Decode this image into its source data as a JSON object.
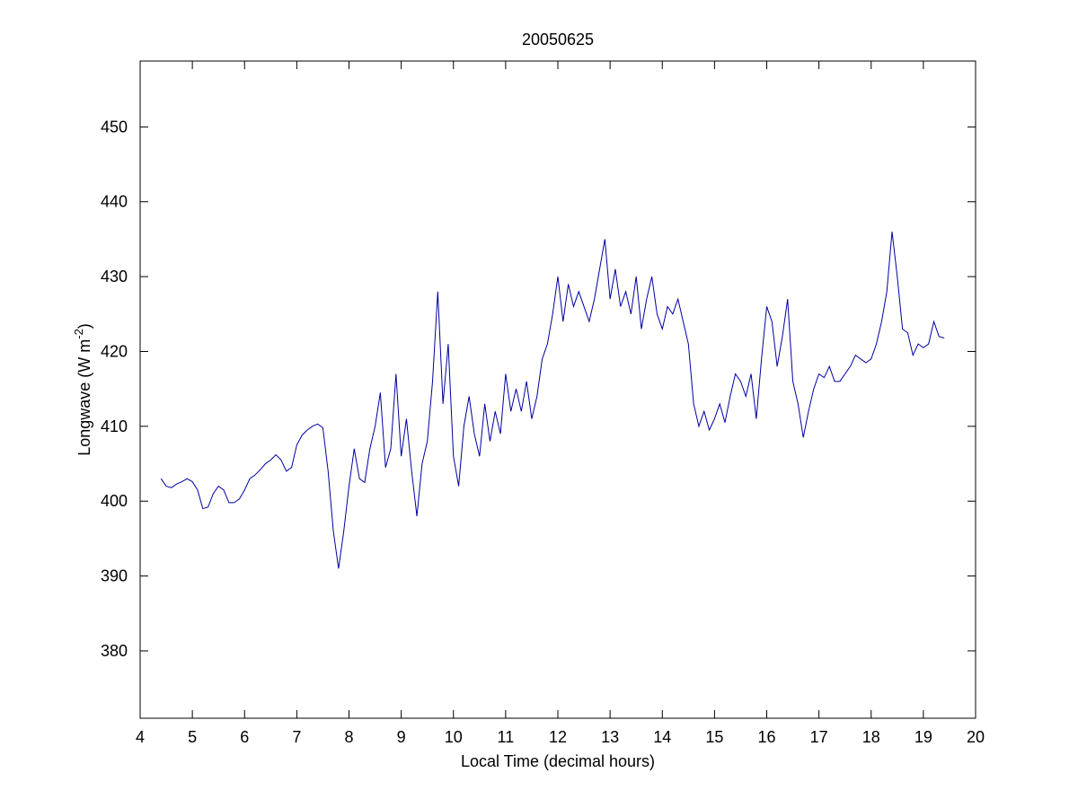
{
  "chart_data": {
    "type": "line",
    "title": "20050625",
    "x_label": "Local Time (decimal hours)",
    "y_label": {
      "text": "Longwave (W m",
      "superscript": "-2",
      "suffix": ")"
    },
    "xlim": [
      4,
      20
    ],
    "ylim": [
      371,
      458.8
    ],
    "xticks": [
      4,
      5,
      6,
      7,
      8,
      9,
      10,
      11,
      12,
      13,
      14,
      15,
      16,
      17,
      18,
      19,
      20
    ],
    "yticks": [
      380,
      390,
      400,
      410,
      420,
      430,
      440,
      450
    ],
    "grid": false,
    "x": [
      4.4,
      4.5,
      4.6,
      4.7,
      4.8,
      4.9,
      5.0,
      5.1,
      5.2,
      5.3,
      5.4,
      5.5,
      5.6,
      5.7,
      5.8,
      5.9,
      6.0,
      6.1,
      6.2,
      6.3,
      6.4,
      6.5,
      6.6,
      6.7,
      6.8,
      6.9,
      7.0,
      7.1,
      7.2,
      7.3,
      7.4,
      7.5,
      7.6,
      7.7,
      7.8,
      7.9,
      8.0,
      8.1,
      8.2,
      8.3,
      8.4,
      8.5,
      8.6,
      8.7,
      8.8,
      8.9,
      9.0,
      9.1,
      9.2,
      9.3,
      9.4,
      9.5,
      9.6,
      9.7,
      9.8,
      9.9,
      10.0,
      10.1,
      10.2,
      10.3,
      10.4,
      10.5,
      10.6,
      10.7,
      10.8,
      10.9,
      11.0,
      11.1,
      11.2,
      11.3,
      11.4,
      11.5,
      11.6,
      11.7,
      11.8,
      11.9,
      12.0,
      12.1,
      12.2,
      12.3,
      12.4,
      12.5,
      12.6,
      12.7,
      12.8,
      12.9,
      13.0,
      13.1,
      13.2,
      13.3,
      13.4,
      13.5,
      13.6,
      13.7,
      13.8,
      13.9,
      14.0,
      14.1,
      14.2,
      14.3,
      14.4,
      14.5,
      14.6,
      14.7,
      14.8,
      14.9,
      15.0,
      15.1,
      15.2,
      15.3,
      15.4,
      15.5,
      15.6,
      15.7,
      15.8,
      15.9,
      16.0,
      16.1,
      16.2,
      16.3,
      16.4,
      16.5,
      16.6,
      16.7,
      16.8,
      16.9,
      17.0,
      17.1,
      17.2,
      17.3,
      17.4,
      17.5,
      17.6,
      17.7,
      17.8,
      17.9,
      18.0,
      18.1,
      18.2,
      18.3,
      18.4,
      18.5,
      18.6,
      18.7,
      18.8,
      18.9,
      19.0,
      19.1,
      19.2,
      19.3,
      19.4
    ],
    "series": [
      {
        "name": "Longwave",
        "color": "#0000a0",
        "values": [
          403,
          402,
          401.8,
          402.3,
          402.6,
          403,
          402.6,
          401.5,
          399,
          399.2,
          401,
          402,
          401.5,
          399.8,
          399.8,
          400.3,
          401.5,
          403,
          403.5,
          404.2,
          405,
          405.5,
          406.2,
          405.5,
          404,
          404.5,
          407.5,
          408.8,
          409.5,
          410,
          410.3,
          409.8,
          404,
          396,
          391,
          396,
          402,
          407,
          403,
          402.5,
          407,
          410,
          414.5,
          404.5,
          407,
          417,
          406,
          411,
          404,
          398,
          405,
          408,
          416,
          428,
          413,
          421,
          406,
          402,
          410,
          414,
          409,
          406,
          413,
          408,
          412,
          409,
          417,
          412,
          415,
          412,
          416,
          411,
          414,
          419,
          421,
          425,
          430,
          424,
          429,
          426,
          428,
          426,
          424,
          427,
          431,
          435,
          427,
          431,
          426,
          428,
          425,
          430,
          423,
          427,
          430,
          425,
          423,
          426,
          425,
          427,
          424,
          421,
          413,
          410,
          412,
          409.5,
          411,
          413,
          410.5,
          414,
          417,
          416,
          414,
          417,
          411,
          419,
          426,
          424,
          418,
          422,
          427,
          416,
          413,
          408.5,
          412,
          415,
          417,
          416.5,
          418,
          416,
          416,
          417,
          418,
          419.5,
          419,
          418.5,
          419,
          421,
          424,
          428,
          436,
          430,
          423,
          422.5,
          419.5,
          421,
          420.5,
          421,
          424,
          422,
          421.8
        ]
      }
    ]
  }
}
